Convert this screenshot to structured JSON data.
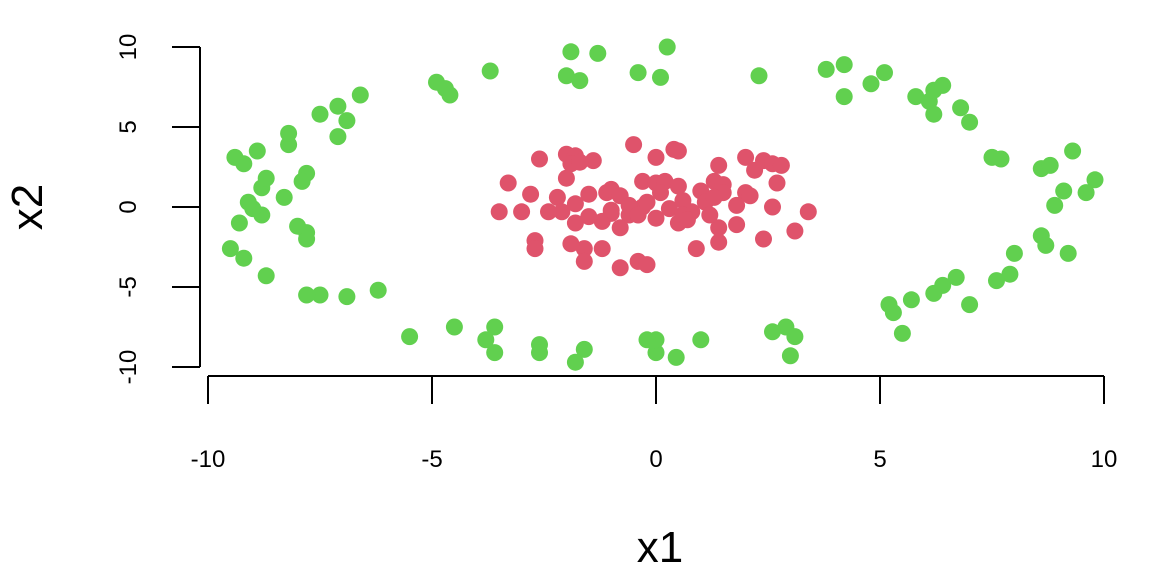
{
  "chart_data": {
    "type": "scatter",
    "xlabel": "x1",
    "ylabel": "x2",
    "xlim": [
      -10,
      10
    ],
    "ylim": [
      -10,
      10
    ],
    "x_ticks": [
      -10,
      -5,
      0,
      5,
      10
    ],
    "x_tick_labels": [
      "-10",
      "-5",
      "0",
      "5",
      "10"
    ],
    "y_ticks": [
      -10,
      -5,
      0,
      5,
      10
    ],
    "y_tick_labels": [
      "-10",
      "-5",
      "0",
      "5",
      "10"
    ],
    "grid": false,
    "legend": "none",
    "series": [
      {
        "color": "#61D04F",
        "points": [
          [
            0.25,
            10.0
          ],
          [
            -1.9,
            9.7
          ],
          [
            -1.3,
            9.6
          ],
          [
            -0.4,
            8.4
          ],
          [
            0.1,
            8.1
          ],
          [
            -2.0,
            8.2
          ],
          [
            -1.7,
            7.9
          ],
          [
            -3.7,
            8.5
          ],
          [
            -4.9,
            7.8
          ],
          [
            -4.7,
            7.4
          ],
          [
            -4.6,
            7.0
          ],
          [
            2.3,
            8.2
          ],
          [
            3.8,
            8.6
          ],
          [
            4.2,
            8.9
          ],
          [
            5.1,
            8.4
          ],
          [
            4.8,
            7.7
          ],
          [
            4.2,
            6.9
          ],
          [
            5.8,
            6.9
          ],
          [
            6.1,
            6.6
          ],
          [
            6.2,
            7.3
          ],
          [
            6.4,
            7.6
          ],
          [
            6.8,
            6.2
          ],
          [
            6.2,
            5.8
          ],
          [
            7.0,
            5.3
          ],
          [
            7.5,
            3.1
          ],
          [
            7.7,
            3.0
          ],
          [
            8.6,
            2.4
          ],
          [
            8.8,
            2.6
          ],
          [
            9.3,
            3.5
          ],
          [
            9.1,
            1.0
          ],
          [
            8.9,
            0.1
          ],
          [
            9.8,
            1.7
          ],
          [
            9.6,
            0.9
          ],
          [
            9.2,
            -2.9
          ],
          [
            8.6,
            -1.8
          ],
          [
            8.7,
            -2.4
          ],
          [
            8.0,
            -2.9
          ],
          [
            7.9,
            -4.2
          ],
          [
            7.6,
            -4.6
          ],
          [
            6.7,
            -4.4
          ],
          [
            6.4,
            -4.9
          ],
          [
            6.2,
            -5.4
          ],
          [
            5.7,
            -5.8
          ],
          [
            5.2,
            -6.1
          ],
          [
            5.3,
            -6.6
          ],
          [
            7.0,
            -6.1
          ],
          [
            5.5,
            -7.9
          ],
          [
            3.1,
            -8.1
          ],
          [
            2.9,
            -7.5
          ],
          [
            2.6,
            -7.8
          ],
          [
            3.0,
            -9.3
          ],
          [
            1.0,
            -8.3
          ],
          [
            0.45,
            -9.4
          ],
          [
            0.0,
            -9.1
          ],
          [
            0.0,
            -8.3
          ],
          [
            -0.2,
            -8.3
          ],
          [
            -1.6,
            -8.9
          ],
          [
            -1.8,
            -9.7
          ],
          [
            -2.6,
            -8.6
          ],
          [
            -2.6,
            -9.1
          ],
          [
            -3.6,
            -9.1
          ],
          [
            -3.8,
            -8.3
          ],
          [
            -3.6,
            -7.5
          ],
          [
            -4.5,
            -7.5
          ],
          [
            -5.5,
            -8.1
          ],
          [
            -6.2,
            -5.2
          ],
          [
            -6.9,
            -5.6
          ],
          [
            -7.5,
            -5.5
          ],
          [
            -7.8,
            -5.5
          ],
          [
            -8.7,
            -4.3
          ],
          [
            -9.2,
            -3.2
          ],
          [
            -9.5,
            -2.6
          ],
          [
            -7.8,
            -2.0
          ],
          [
            -7.8,
            -1.6
          ],
          [
            -8.0,
            -1.2
          ],
          [
            -8.8,
            -0.5
          ],
          [
            -9.0,
            -0.1
          ],
          [
            -9.3,
            -1.0
          ],
          [
            -9.1,
            0.3
          ],
          [
            -8.3,
            0.6
          ],
          [
            -8.8,
            1.2
          ],
          [
            -8.7,
            1.8
          ],
          [
            -7.8,
            2.1
          ],
          [
            -7.9,
            1.6
          ],
          [
            -9.2,
            2.7
          ],
          [
            -8.9,
            3.5
          ],
          [
            -9.4,
            3.1
          ],
          [
            -8.2,
            3.9
          ],
          [
            -8.2,
            4.6
          ],
          [
            -7.1,
            4.4
          ],
          [
            -7.5,
            5.8
          ],
          [
            -7.1,
            6.3
          ],
          [
            -6.9,
            5.4
          ],
          [
            -6.6,
            7.0
          ]
        ]
      },
      {
        "color": "#DF536B",
        "points": [
          [
            -0.5,
            3.9
          ],
          [
            0.4,
            3.6
          ],
          [
            0.5,
            3.5
          ],
          [
            0.0,
            3.1
          ],
          [
            -2.6,
            3.0
          ],
          [
            -2.0,
            3.3
          ],
          [
            -1.8,
            3.2
          ],
          [
            -1.4,
            2.9
          ],
          [
            -1.9,
            2.7
          ],
          [
            -2.0,
            1.8
          ],
          [
            -1.7,
            2.8
          ],
          [
            -3.3,
            1.5
          ],
          [
            -2.8,
            0.8
          ],
          [
            -2.2,
            0.6
          ],
          [
            -1.8,
            0.2
          ],
          [
            -1.5,
            0.8
          ],
          [
            -1.1,
            0.9
          ],
          [
            -1.0,
            1.1
          ],
          [
            -0.8,
            0.7
          ],
          [
            -0.3,
            1.6
          ],
          [
            0.0,
            1.5
          ],
          [
            0.2,
            1.6
          ],
          [
            0.5,
            1.3
          ],
          [
            1.0,
            1.0
          ],
          [
            1.3,
            1.6
          ],
          [
            1.5,
            1.4
          ],
          [
            1.4,
            2.6
          ],
          [
            2.0,
            3.1
          ],
          [
            2.2,
            2.3
          ],
          [
            2.4,
            2.9
          ],
          [
            2.6,
            2.7
          ],
          [
            2.8,
            2.6
          ],
          [
            2.7,
            1.5
          ],
          [
            2.0,
            0.9
          ],
          [
            2.1,
            0.7
          ],
          [
            1.8,
            0.1
          ],
          [
            2.6,
            0.0
          ],
          [
            3.4,
            -0.3
          ],
          [
            3.1,
            -1.5
          ],
          [
            2.4,
            -2.0
          ],
          [
            1.8,
            -1.1
          ],
          [
            1.4,
            -1.3
          ],
          [
            1.4,
            -2.2
          ],
          [
            0.9,
            -2.6
          ],
          [
            0.5,
            -1.0
          ],
          [
            0.8,
            -0.3
          ],
          [
            0.3,
            -0.1
          ],
          [
            0.0,
            -0.7
          ],
          [
            -0.3,
            0.0
          ],
          [
            -0.6,
            -0.5
          ],
          [
            -0.8,
            -1.3
          ],
          [
            -1.0,
            -0.4
          ],
          [
            -1.2,
            -0.9
          ],
          [
            -1.5,
            -0.6
          ],
          [
            -1.8,
            -1.0
          ],
          [
            -1.6,
            -2.6
          ],
          [
            -1.2,
            -2.6
          ],
          [
            -1.9,
            -2.3
          ],
          [
            -2.7,
            -2.1
          ],
          [
            -2.7,
            -2.6
          ],
          [
            -1.6,
            -3.4
          ],
          [
            -0.8,
            -3.8
          ],
          [
            -0.4,
            -3.4
          ],
          [
            -0.2,
            -3.6
          ],
          [
            -2.1,
            -0.3
          ],
          [
            -2.4,
            -0.3
          ],
          [
            -3.0,
            -0.3
          ],
          [
            -3.5,
            -0.3
          ],
          [
            -0.6,
            0.1
          ],
          [
            0.6,
            0.4
          ],
          [
            1.1,
            0.3
          ],
          [
            1.5,
            0.9
          ],
          [
            1.3,
            0.6
          ],
          [
            0.6,
            -0.5
          ],
          [
            -0.4,
            -0.5
          ],
          [
            0.1,
            0.9
          ],
          [
            0.7,
            -0.8
          ],
          [
            1.2,
            -0.5
          ],
          [
            -1.0,
            -0.2
          ],
          [
            -0.2,
            0.3
          ]
        ]
      }
    ]
  }
}
